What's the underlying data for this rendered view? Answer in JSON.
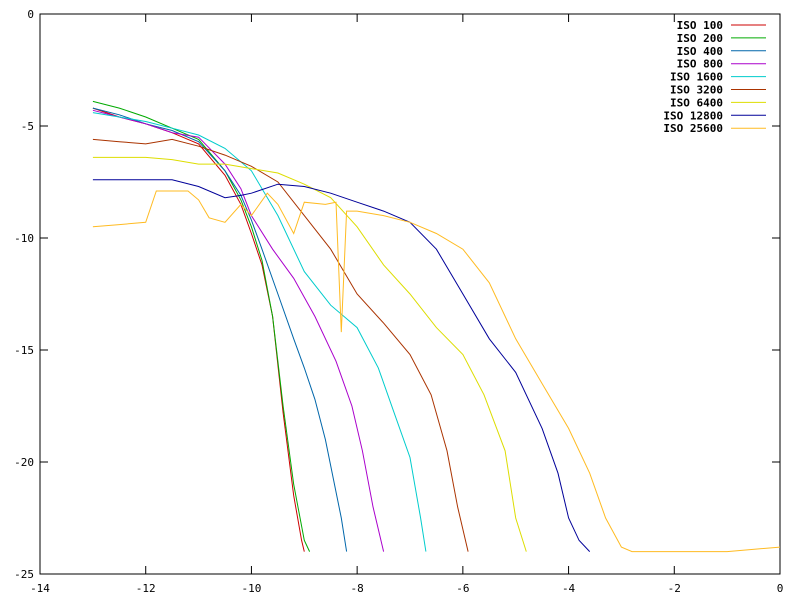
{
  "chart_data": {
    "type": "line",
    "title": "",
    "xlabel": "",
    "ylabel": "",
    "xlim": [
      -14,
      0
    ],
    "ylim": [
      -25,
      0
    ],
    "x_ticks": [
      -14,
      -12,
      -10,
      -8,
      -6,
      -4,
      -2,
      0
    ],
    "y_ticks": [
      0,
      -5,
      -10,
      -15,
      -20,
      -25
    ],
    "grid": false,
    "legend_position": "top-right",
    "series": [
      {
        "name": "ISO 100",
        "color": "#cc0000",
        "x": [
          -13,
          -12.5,
          -12,
          -11.5,
          -11,
          -10.5,
          -10.2,
          -10,
          -9.8,
          -9.6,
          -9.4,
          -9.2,
          -9.05,
          -9
        ],
        "y": [
          -4.2,
          -4.6,
          -4.9,
          -5.3,
          -5.8,
          -7.2,
          -8.5,
          -9.8,
          -11.2,
          -13.5,
          -17.8,
          -21.5,
          -23.5,
          -24
        ]
      },
      {
        "name": "ISO 200",
        "color": "#00aa00",
        "x": [
          -13,
          -12.5,
          -12,
          -11.5,
          -11,
          -10.5,
          -10.2,
          -10,
          -9.8,
          -9.6,
          -9.4,
          -9.2,
          -9,
          -8.9
        ],
        "y": [
          -3.9,
          -4.2,
          -4.6,
          -5.1,
          -5.6,
          -7.0,
          -8.3,
          -9.5,
          -11.0,
          -13.5,
          -17.5,
          -21.0,
          -23.5,
          -24
        ]
      },
      {
        "name": "ISO 400",
        "color": "#0066aa",
        "x": [
          -13,
          -12.5,
          -12,
          -11.5,
          -11,
          -10.5,
          -10.2,
          -10,
          -9.8,
          -9.5,
          -9.2,
          -9,
          -8.8,
          -8.6,
          -8.3,
          -8.2
        ],
        "y": [
          -4.2,
          -4.5,
          -4.9,
          -5.2,
          -5.7,
          -7.0,
          -8.1,
          -9.2,
          -10.5,
          -12.5,
          -14.5,
          -15.8,
          -17.2,
          -19.0,
          -22.5,
          -24
        ]
      },
      {
        "name": "ISO 800",
        "color": "#aa00cc",
        "x": [
          -13,
          -12.5,
          -12,
          -11.5,
          -11,
          -10.5,
          -10.2,
          -10,
          -9.6,
          -9.2,
          -8.8,
          -8.4,
          -8.1,
          -7.9,
          -7.7,
          -7.5
        ],
        "y": [
          -4.3,
          -4.6,
          -4.9,
          -5.3,
          -5.5,
          -6.7,
          -7.8,
          -9.0,
          -10.5,
          -11.8,
          -13.5,
          -15.5,
          -17.5,
          -19.5,
          -22.0,
          -24
        ]
      },
      {
        "name": "ISO 1600",
        "color": "#00cccc",
        "x": [
          -13,
          -12.5,
          -12,
          -11.5,
          -11,
          -10.5,
          -10,
          -9.5,
          -9,
          -8.5,
          -8,
          -7.6,
          -7.3,
          -7.0,
          -6.8,
          -6.7
        ],
        "y": [
          -4.4,
          -4.6,
          -4.8,
          -5.1,
          -5.4,
          -6.0,
          -7.0,
          -9.0,
          -11.5,
          -13.0,
          -14.0,
          -15.8,
          -17.8,
          -19.8,
          -22.5,
          -24
        ]
      },
      {
        "name": "ISO 3200",
        "color": "#aa3300",
        "x": [
          -13,
          -12.5,
          -12,
          -11.5,
          -11,
          -10.5,
          -10,
          -9.5,
          -9,
          -8.5,
          -8,
          -7.5,
          -7,
          -6.6,
          -6.3,
          -6.1,
          -5.9
        ],
        "y": [
          -5.6,
          -5.7,
          -5.8,
          -5.6,
          -5.9,
          -6.3,
          -6.8,
          -7.5,
          -9.0,
          -10.5,
          -12.5,
          -13.8,
          -15.2,
          -17.0,
          -19.5,
          -22.0,
          -24
        ]
      },
      {
        "name": "ISO 6400",
        "color": "#dddd00",
        "x": [
          -13,
          -12,
          -11.5,
          -11,
          -10.5,
          -10,
          -9.5,
          -9,
          -8.5,
          -8,
          -7.5,
          -7,
          -6.5,
          -6,
          -5.6,
          -5.2,
          -5.0,
          -4.8
        ],
        "y": [
          -6.4,
          -6.4,
          -6.5,
          -6.7,
          -6.7,
          -6.9,
          -7.1,
          -7.6,
          -8.2,
          -9.5,
          -11.2,
          -12.5,
          -14.0,
          -15.2,
          -17.0,
          -19.5,
          -22.5,
          -24
        ]
      },
      {
        "name": "ISO 12800",
        "color": "#000099",
        "x": [
          -13,
          -12,
          -11.5,
          -11,
          -10.5,
          -10.2,
          -10,
          -9.5,
          -9,
          -8.5,
          -8,
          -7.5,
          -7,
          -6.5,
          -6,
          -5.5,
          -5,
          -4.5,
          -4.2,
          -4.0,
          -3.8,
          -3.6
        ],
        "y": [
          -7.4,
          -7.4,
          -7.4,
          -7.7,
          -8.2,
          -8.1,
          -8.0,
          -7.6,
          -7.7,
          -8.0,
          -8.4,
          -8.8,
          -9.3,
          -10.5,
          -12.5,
          -14.5,
          -16.0,
          -18.5,
          -20.5,
          -22.5,
          -23.5,
          -24
        ]
      },
      {
        "name": "ISO 25600",
        "color": "#ffbb22",
        "x": [
          -13,
          -12.5,
          -12,
          -11.8,
          -11.2,
          -11,
          -10.8,
          -10.5,
          -10.2,
          -10,
          -9.7,
          -9.5,
          -9.2,
          -9,
          -8.6,
          -8.4,
          -8.3,
          -8.2,
          -8,
          -7.5,
          -7,
          -6.5,
          -6,
          -5.5,
          -5,
          -4.5,
          -4,
          -3.6,
          -3.3,
          -3.0,
          -2.8,
          -2,
          -1,
          0
        ],
        "y": [
          -9.5,
          -9.4,
          -9.3,
          -7.9,
          -7.9,
          -8.3,
          -9.1,
          -9.3,
          -8.5,
          -9.0,
          -8.0,
          -8.5,
          -9.8,
          -8.4,
          -8.5,
          -8.4,
          -14.2,
          -8.8,
          -8.8,
          -9.0,
          -9.3,
          -9.8,
          -10.5,
          -12.0,
          -14.5,
          -16.5,
          -18.5,
          -20.5,
          -22.5,
          -23.8,
          -24,
          -24,
          -24,
          -23.8
        ]
      }
    ]
  }
}
